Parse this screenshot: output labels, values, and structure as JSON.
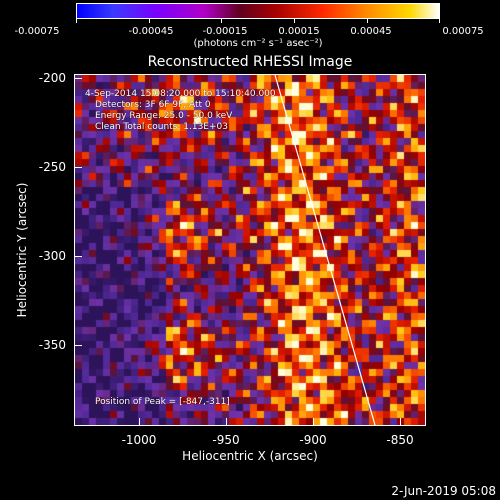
{
  "colorbar": {
    "labels": [
      "-0.00075",
      "-0.00045",
      "-0.00015",
      "0.00015",
      "0.00045",
      "0.00075"
    ],
    "units": "(photons cm⁻² s⁻¹ asec⁻²)"
  },
  "title": "Reconstructed RHESSI Image",
  "info": {
    "time": "4-Sep-2014 15:08:20.000 to 15:10:40.000",
    "detectors": "Detectors: 3F 6F 9F, Att 0",
    "energy": "Energy Range: 25.0 - 50.0 keV",
    "clean": "Clean     Total counts: 1.13E+03",
    "peak": "Position of Peak = [-847,-311]"
  },
  "axes": {
    "xlabel": "Heliocentric X (arcsec)",
    "ylabel": "Heliocentric Y (arcsec)",
    "xticks": [
      "-1000",
      "-950",
      "-900",
      "-850"
    ],
    "yticks": [
      "-200",
      "-250",
      "-300",
      "-350"
    ],
    "xlim": [
      -1035,
      -835
    ],
    "ylim": [
      -390,
      -195
    ]
  },
  "timestamp": "2-Jun-2019 05:08"
}
